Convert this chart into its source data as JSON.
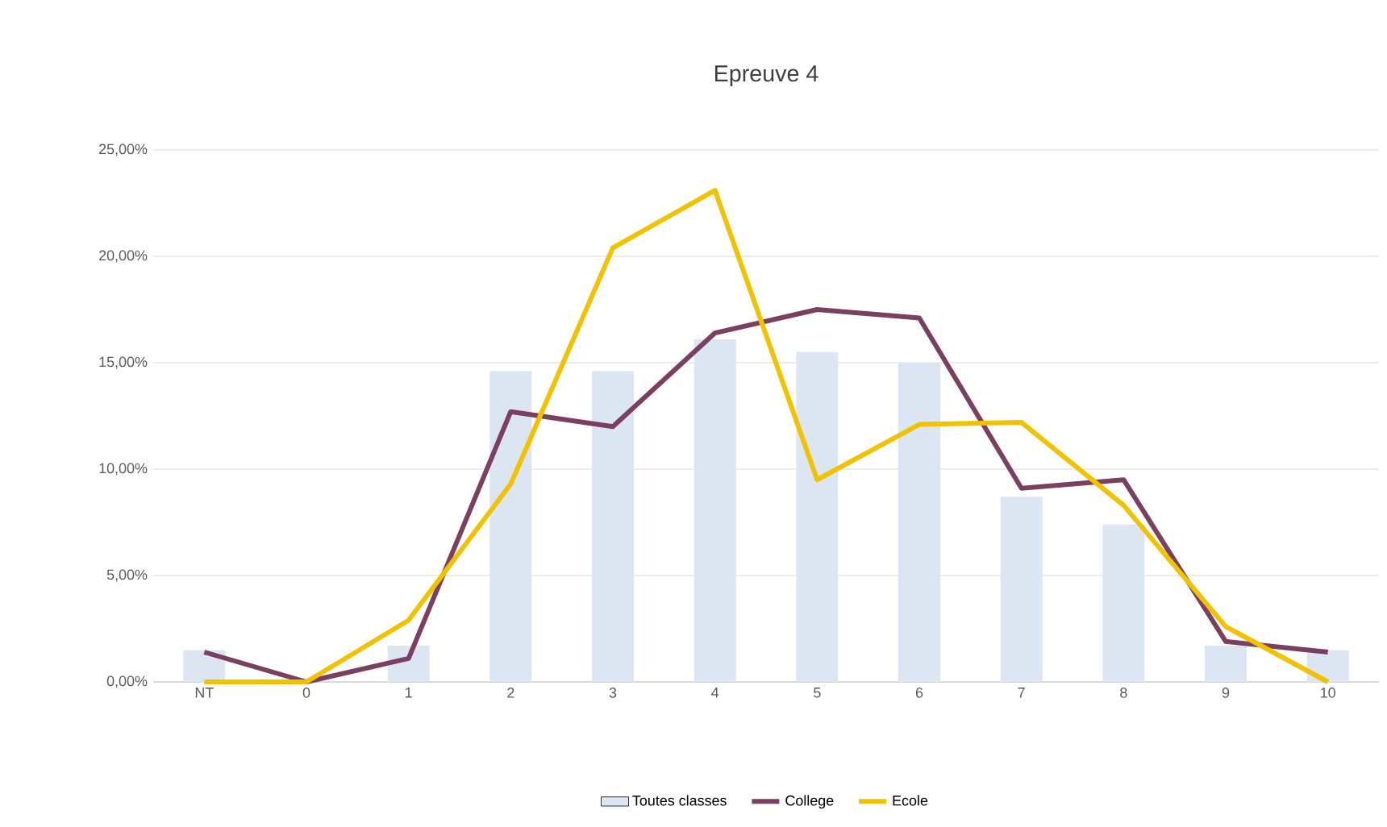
{
  "chart_data": {
    "type": "bar",
    "title": "Epreuve 4",
    "categories": [
      "NT",
      "0",
      "1",
      "2",
      "3",
      "4",
      "5",
      "6",
      "7",
      "8",
      "9",
      "10"
    ],
    "series": [
      {
        "name": "Toutes classes",
        "color": "#dce6f2",
        "values": [
          1.5,
          0,
          1.7,
          14.6,
          14.6,
          16.1,
          15.5,
          15.0,
          8.7,
          7.4,
          1.7,
          1.5
        ]
      },
      {
        "name": "College",
        "type": "line",
        "color": "#7b3f61",
        "values": [
          1.4,
          0,
          1.1,
          12.7,
          12.0,
          16.4,
          17.5,
          17.1,
          9.1,
          9.5,
          1.9,
          1.4
        ]
      },
      {
        "name": "Ecole",
        "type": "line",
        "color": "#f2c200",
        "values": [
          0,
          0,
          2.9,
          9.3,
          20.4,
          23.1,
          9.5,
          12.1,
          12.2,
          8.3,
          2.6,
          0
        ]
      }
    ],
    "ylim": [
      0,
      25
    ],
    "yticks": [
      {
        "value": 0,
        "label": "0,00%"
      },
      {
        "value": 5,
        "label": "5,00%"
      },
      {
        "value": 10,
        "label": "10,00%"
      },
      {
        "value": 15,
        "label": "15,00%"
      },
      {
        "value": 20,
        "label": "20,00%"
      },
      {
        "value": 25,
        "label": "25,00%"
      }
    ],
    "grid": "y",
    "legend": "bottom",
    "marker": "none",
    "line_style": "solid"
  }
}
